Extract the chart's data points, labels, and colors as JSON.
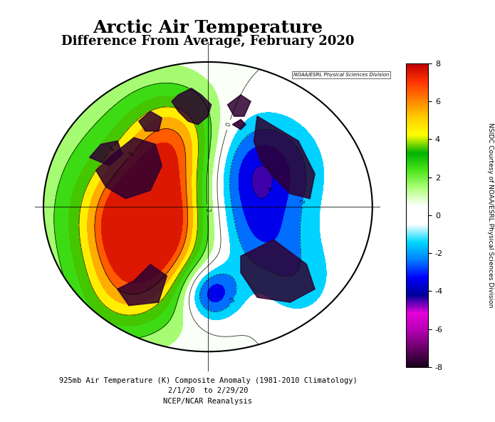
{
  "title_line1": "Arctic Air Temperature",
  "title_line2": "Difference From Average, February 2020",
  "colorbar_label_right": "NSIDC Courtesy of NOAA/ESRL Physical Sciences Division",
  "watermark": "NOAA/ESRL Physical Sciences Division",
  "caption_line1": "925mb Air Temperature (K) Composite Anomaly (1981-2010 Climatology)",
  "caption_line2": "2/1/20  to 2/29/20",
  "caption_line3": "NCEP/NCAR Reanalysis",
  "vmin": -8,
  "vmax": 8,
  "colorbar_ticks": [
    -8,
    -6,
    -4,
    -2,
    0,
    2,
    4,
    6,
    8
  ],
  "colors": [
    "#1a0020",
    "#6b006b",
    "#cc00cc",
    "#ff00ff",
    "#0000aa",
    "#0000ff",
    "#0055ff",
    "#00aaff",
    "#00ccff",
    "#44eeff",
    "#ffffff",
    "#ffffff",
    "#ccffaa",
    "#88ee44",
    "#44cc00",
    "#00aa00",
    "#ffff00",
    "#ffcc00",
    "#ff8800",
    "#ff4400",
    "#dd0000",
    "#880000"
  ],
  "background_color": "#ffffff",
  "fig_width": 6.95,
  "fig_height": 5.92
}
